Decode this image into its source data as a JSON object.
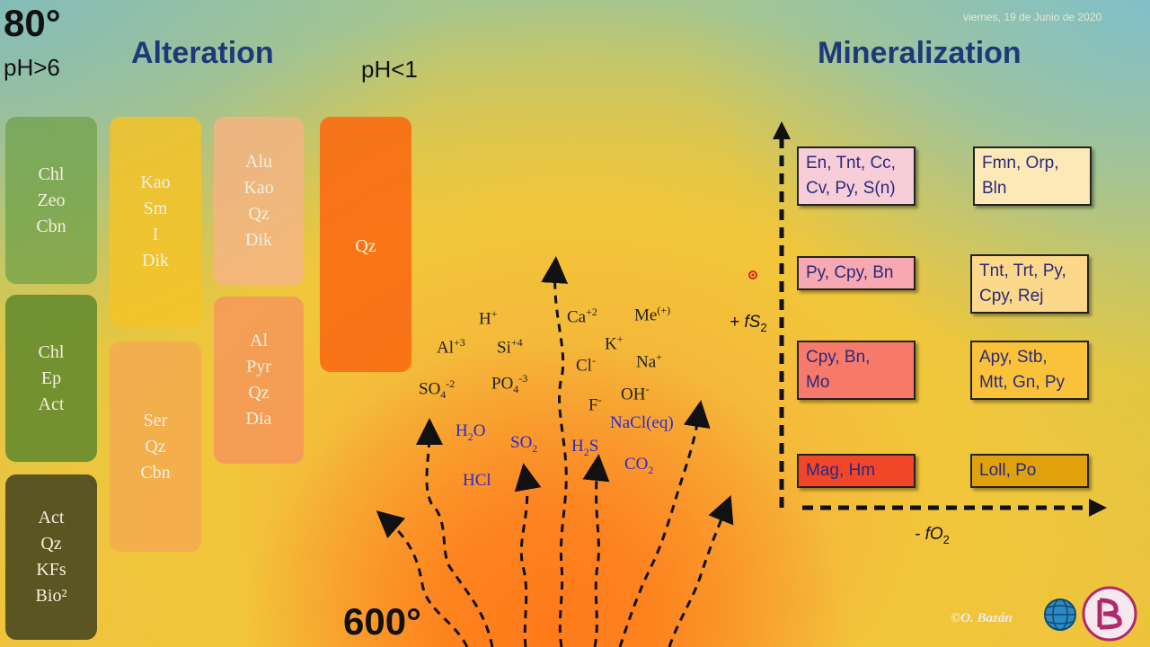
{
  "header": {
    "temp_top": "80°",
    "ph_high": "pH>6",
    "alteration_title": "Alteration",
    "ph_low": "pH<1",
    "mineralization_title": "Mineralization",
    "date": "viernes, 19 de Junio de 2020",
    "temp_bottom": "600°"
  },
  "alteration": {
    "col1": [
      [
        "Chl",
        "Zeo",
        "Cbn"
      ],
      [
        "Chl",
        "Ep",
        "Act"
      ],
      [
        "Act",
        "Qz",
        "KFs",
        "Bio²"
      ]
    ],
    "col2": [
      [
        "Kao",
        "Sm",
        "I",
        "Dik"
      ],
      [
        "Ser",
        "Qz",
        "Cbn"
      ]
    ],
    "col3": [
      [
        "Alu",
        "Kao",
        "Qz",
        "Dik"
      ],
      [
        "Al",
        "Pyr",
        "Qz",
        "Dia"
      ]
    ],
    "col4": [
      [
        "Qz"
      ]
    ]
  },
  "ions": {
    "h": "H",
    "h_sup": "+",
    "ca": "Ca",
    "ca_sup": "+2",
    "me": "Me",
    "me_sup": "(+)",
    "al": "Al",
    "al_sup": "+3",
    "si": "Si",
    "si_sup": "+4",
    "k": "K",
    "k_sup": "+",
    "cl": "Cl",
    "cl_sup": "-",
    "na": "Na",
    "na_sup": "+",
    "so4": "SO",
    "so4_sub": "4",
    "so4_sup": "-2",
    "po4": "PO",
    "po4_sub": "4",
    "po4_sup": "-3",
    "f": "F",
    "f_sup": "-",
    "oh": "OH",
    "oh_sup": "-",
    "h2o_a": "H",
    "h2o_sub": "2",
    "h2o_b": "O",
    "so2_a": "SO",
    "so2_sub": "2",
    "h2s_a": "H",
    "h2s_sub": "2",
    "h2s_b": "S",
    "nacl": "NaCl(eq)",
    "hcl": "HCl",
    "co2_a": "CO",
    "co2_sub": "2"
  },
  "mineralization": {
    "fs2_label": "+ fS",
    "fs2_sub": "2",
    "fo2_label": "- fO",
    "fo2_sub": "2",
    "left": [
      {
        "lines": [
          "En, Tnt, Cc,",
          "Cv, Py, S(n)"
        ],
        "color": "#f7cdd8"
      },
      {
        "lines": [
          "Py, Cpy, Bn"
        ],
        "color": "#f8a8b0"
      },
      {
        "lines": [
          "Cpy, Bn,",
          "Mo"
        ],
        "color": "#f77a6a"
      },
      {
        "lines": [
          "Mag, Hm"
        ],
        "color": "#f2462a"
      }
    ],
    "right": [
      {
        "lines": [
          "Fmn, Orp,",
          "Bln"
        ],
        "color": "#fde9b8"
      },
      {
        "lines": [
          "Tnt, Trt, Py,",
          "Cpy, Rej"
        ],
        "color": "#fbd88a"
      },
      {
        "lines": [
          "Apy, Stb,",
          "Mtt, Gn, Py"
        ],
        "color": "#f9c23a"
      },
      {
        "lines": [
          "Loll, Po"
        ],
        "color": "#e0a20c"
      }
    ]
  },
  "credit": "©O. Bazán"
}
